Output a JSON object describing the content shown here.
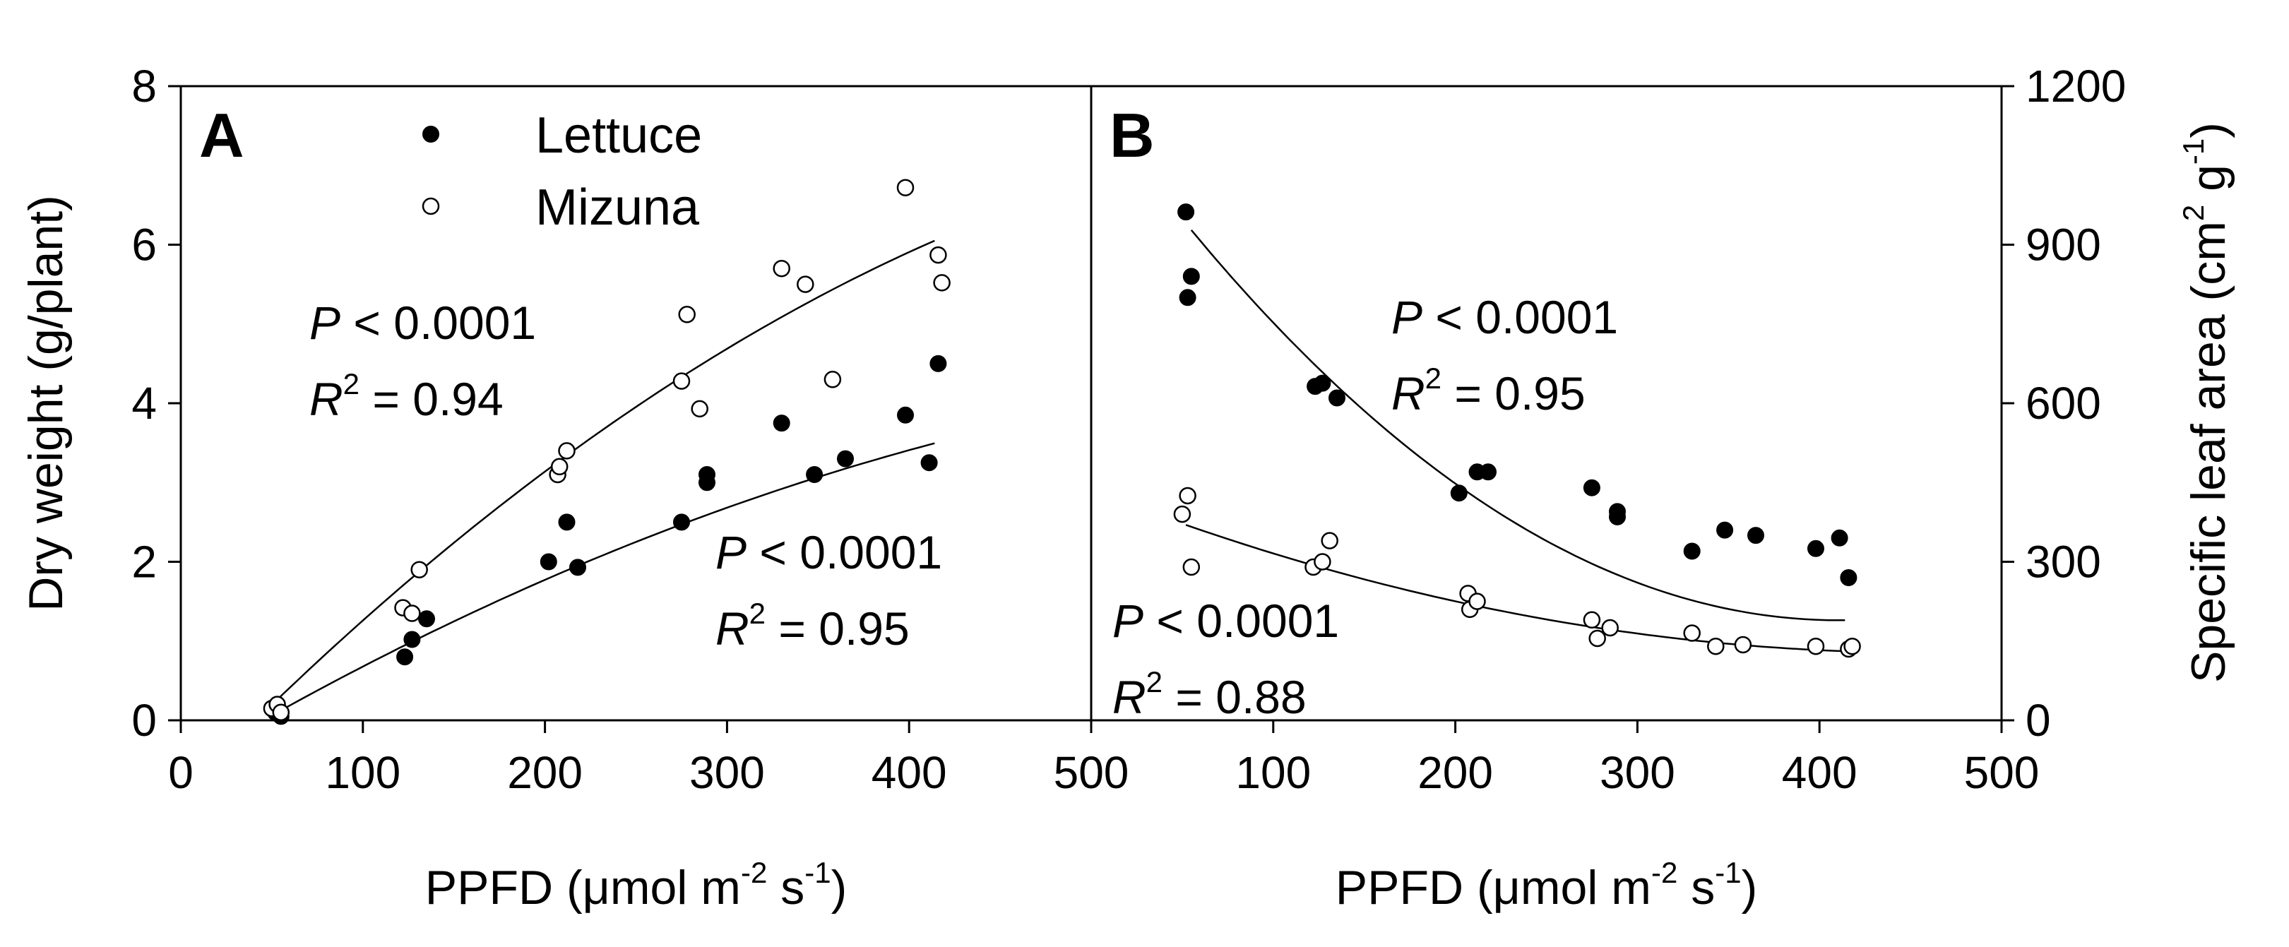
{
  "chart_data": [
    {
      "type": "scatter",
      "panel_label": "A",
      "ylabel": "Dry weight (g/plant)",
      "xlabel": {
        "prefix": "PPFD (",
        "mu": "μ",
        "mol_m": "mol m",
        "exp1": "-2",
        "s": " s",
        "exp2": "-1",
        "close": ")"
      },
      "xlim": [
        0,
        500
      ],
      "ylim": [
        0,
        8
      ],
      "xticks": [
        "0",
        "100",
        "200",
        "300",
        "400",
        "500"
      ],
      "yticks": [
        "0",
        "2",
        "4",
        "6",
        "8"
      ],
      "legend": {
        "position": "top-left",
        "entries": [
          {
            "label": "Lettuce",
            "marker": "filled-circle"
          },
          {
            "label": "Mizuna",
            "marker": "open-circle"
          }
        ]
      },
      "series": [
        {
          "name": "Lettuce",
          "marker": "filled",
          "x": [
            52,
            55,
            123,
            127,
            135,
            202,
            212,
            218,
            275,
            289,
            289,
            330,
            348,
            365,
            398,
            411,
            416
          ],
          "y": [
            0.1,
            0.05,
            0.8,
            1.02,
            1.28,
            2.0,
            2.5,
            1.93,
            2.5,
            3.0,
            3.1,
            3.75,
            3.1,
            3.3,
            3.85,
            3.25,
            4.5
          ],
          "fit": {
            "a": -0.6,
            "b": 0.0137,
            "c": -9.2e-06,
            "x_range": [
              52,
              414
            ]
          },
          "stats": {
            "p": "P < 0.0001",
            "r2_prefix": "R",
            "r2_exp": "2",
            "r2_value": " = 0.95"
          }
        },
        {
          "name": "Mizuna",
          "marker": "open",
          "x": [
            50,
            53,
            55,
            122,
            127,
            131,
            207,
            208,
            212,
            275,
            278,
            285,
            330,
            343,
            358,
            398,
            416,
            418
          ],
          "y": [
            0.15,
            0.2,
            0.1,
            1.42,
            1.35,
            1.9,
            3.1,
            3.2,
            3.4,
            4.28,
            5.12,
            3.93,
            5.7,
            5.5,
            4.3,
            6.72,
            5.87,
            5.52
          ],
          "fit": {
            "a": -0.95,
            "b": 0.02374,
            "c": -1.65e-05,
            "x_range": [
              52,
              414
            ]
          },
          "stats": {
            "p": "P < 0.0001",
            "r2_prefix": "R",
            "r2_exp": "2",
            "r2_value": " = 0.94"
          }
        }
      ]
    },
    {
      "type": "scatter",
      "panel_label": "B",
      "ylabel": {
        "prefix": "Specific leaf area (cm",
        "exp1": "2",
        "g": " g",
        "exp2": "-1",
        "close": ")"
      },
      "xlabel": {
        "prefix": "PPFD (",
        "mu": "μ",
        "mol_m": "mol m",
        "exp1": "-2",
        "s": " s",
        "exp2": "-1",
        "close": ")"
      },
      "xlim": [
        0,
        500
      ],
      "ylim": [
        0,
        1200
      ],
      "xticks": [
        "0",
        "100",
        "200",
        "300",
        "400",
        "500"
      ],
      "yticks": [
        "0",
        "300",
        "600",
        "900",
        "1200"
      ],
      "series": [
        {
          "name": "Lettuce",
          "marker": "filled",
          "x": [
            52,
            53,
            55,
            123,
            127,
            135,
            202,
            212,
            218,
            275,
            289,
            289,
            330,
            348,
            365,
            398,
            411,
            416
          ],
          "y": [
            962,
            800,
            840,
            632,
            638,
            610,
            430,
            470,
            470,
            440,
            395,
            385,
            320,
            360,
            350,
            325,
            345,
            270
          ],
          "fit": {
            "a": 1174,
            "b": -4.8,
            "c": 0.00585,
            "x_range": [
              55,
              414
            ]
          },
          "stats": {
            "p": "P < 0.0001",
            "r2_prefix": "R",
            "r2_exp": "2",
            "r2_value": " = 0.95"
          }
        },
        {
          "name": "Mizuna",
          "marker": "open",
          "x": [
            50,
            53,
            55,
            122,
            127,
            131,
            207,
            208,
            212,
            275,
            278,
            285,
            330,
            343,
            358,
            398,
            416,
            418
          ],
          "y": [
            390,
            425,
            290,
            290,
            300,
            340,
            240,
            210,
            225,
            190,
            155,
            175,
            165,
            140,
            143,
            140,
            135,
            140
          ],
          "fit": {
            "a": 436,
            "b": -1.35,
            "c": 0.00148,
            "x_range": [
              52,
              414
            ]
          },
          "stats": {
            "p": "P < 0.0001",
            "r2_prefix": "R",
            "r2_exp": "2",
            "r2_value": " = 0.88"
          }
        }
      ]
    }
  ]
}
